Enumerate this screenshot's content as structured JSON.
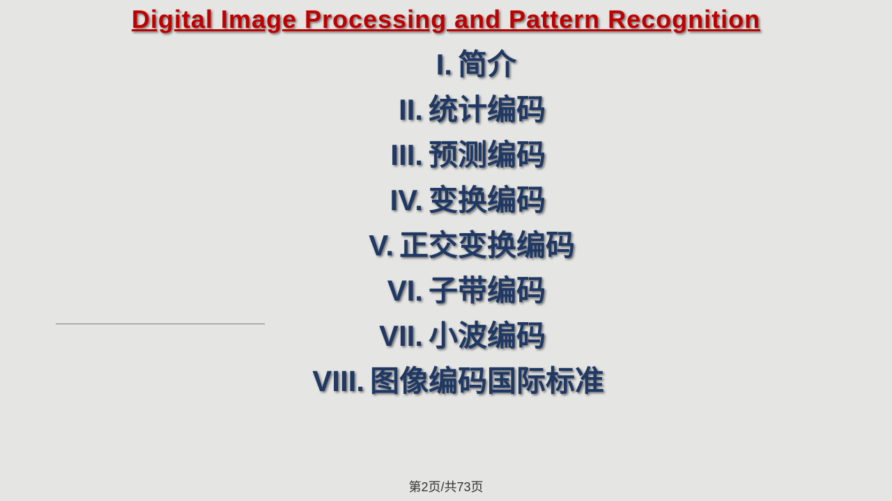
{
  "title": "Digital Image Processing and Pattern Recognition",
  "outline": [
    {
      "num": "I.",
      "label": "简介"
    },
    {
      "num": "II.",
      "label": "统计编码"
    },
    {
      "num": "III.",
      "label": "预测编码"
    },
    {
      "num": "IV.",
      "label": "变换编码"
    },
    {
      "num": "V.",
      "label": "正交变换编码"
    },
    {
      "num": "VI.",
      "label": "子带编码"
    },
    {
      "num": "VII.",
      "label": "小波编码"
    },
    {
      "num": "VIII.",
      "label": "图像编码国际标准"
    }
  ],
  "footer": "第2页/共73页",
  "colors": {
    "background": "#e5e5e3",
    "title": "#c00000",
    "body_text": "#1f3864",
    "footer_text": "#333333"
  },
  "fonts": {
    "title_size": 36,
    "body_size": 42,
    "footer_size": 18
  }
}
